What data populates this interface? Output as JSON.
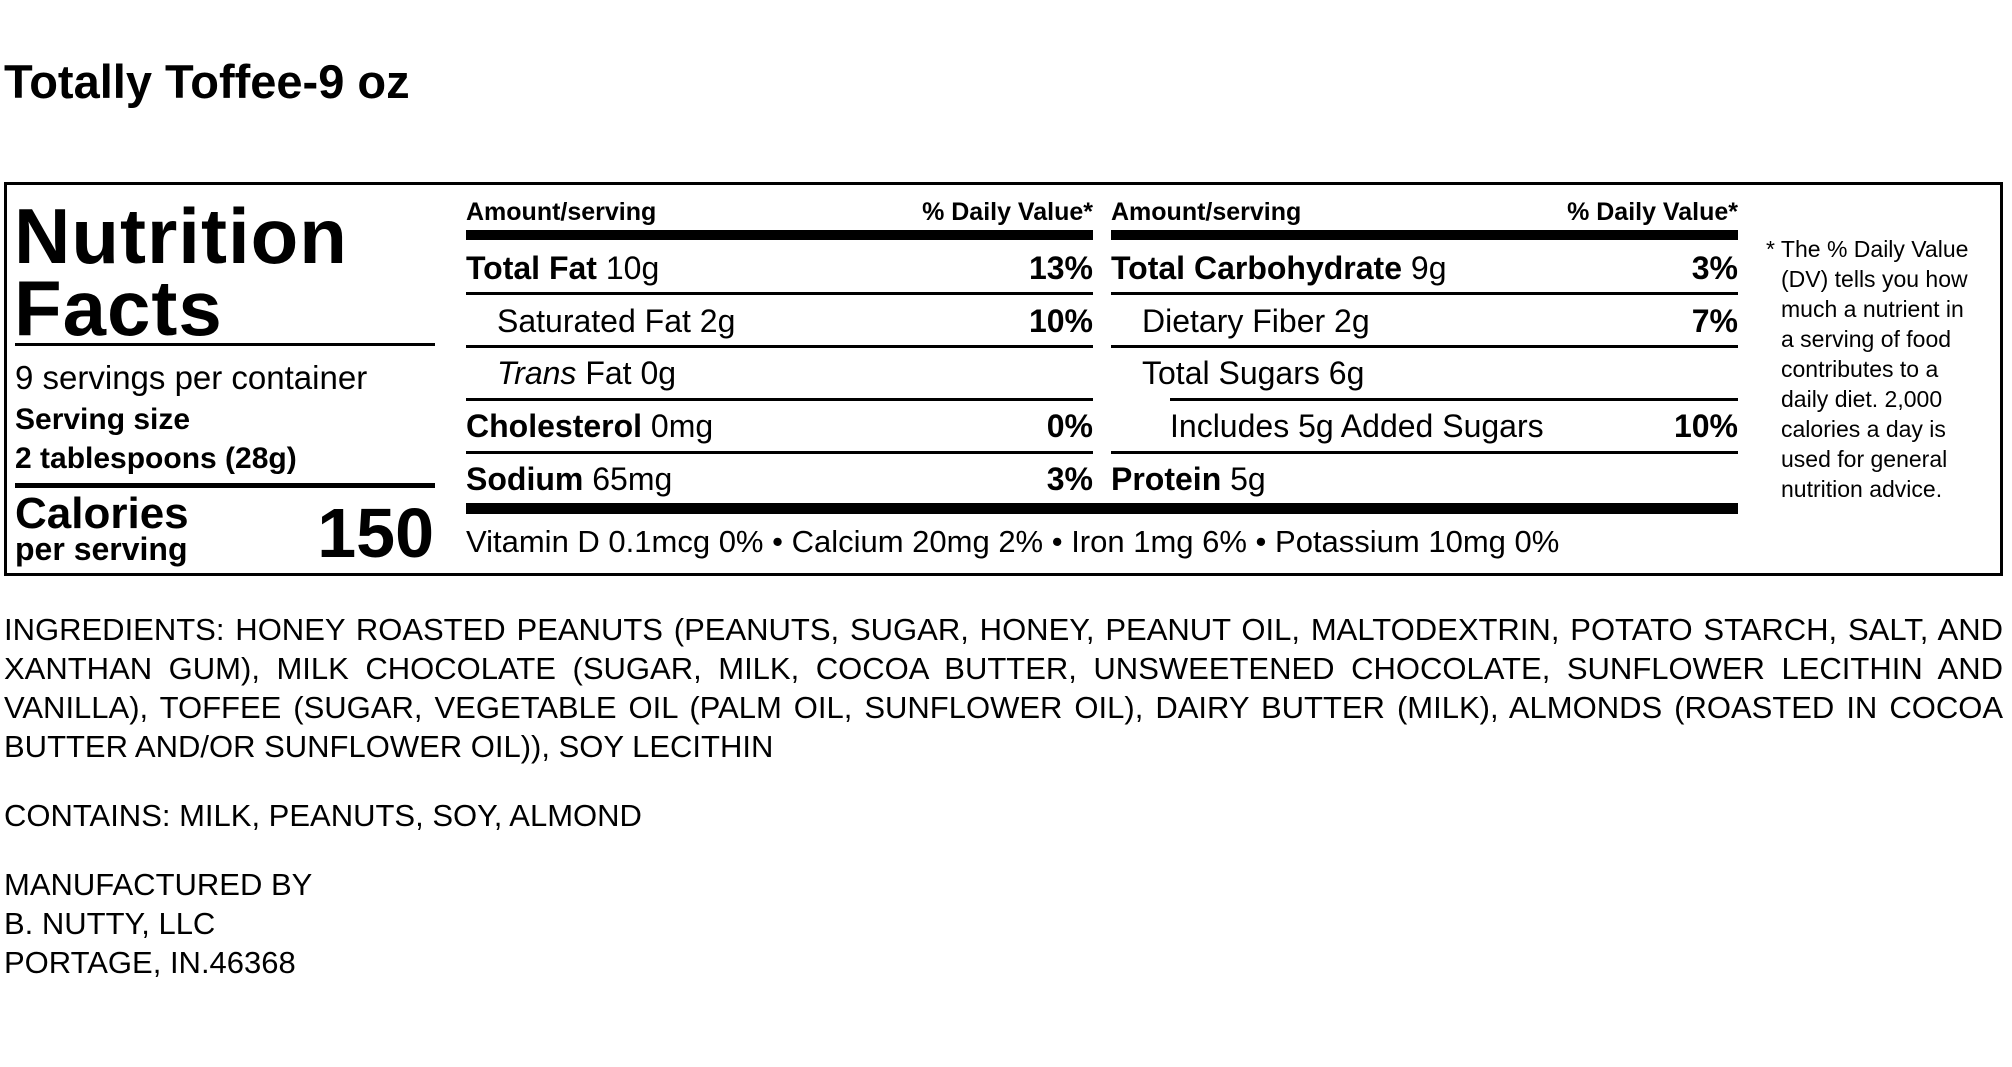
{
  "product_title": "Totally Toffee-9 oz",
  "label": {
    "heading_line1": "Nutrition",
    "heading_line2": "Facts",
    "servings_per_container": "9 servings per container",
    "serving_size_label": "Serving size",
    "serving_size_value": "2 tablespoons (28g)",
    "calories_label": "Calories",
    "calories_sublabel": "per serving",
    "calories_value": "150",
    "columns": [
      {
        "amount_header": "Amount/serving",
        "dv_header": "% Daily Value*",
        "rows": [
          {
            "name": "Total Fat",
            "amount": "10g",
            "dv": "13%",
            "bold": true,
            "indent": 0
          },
          {
            "name": "Saturated Fat",
            "amount": "2g",
            "dv": "10%",
            "bold": false,
            "indent": 1
          },
          {
            "name": "Trans",
            "name_suffix": "Fat",
            "amount": "0g",
            "dv": "",
            "bold": false,
            "indent": 1,
            "italic_prefix": true
          },
          {
            "name": "Cholesterol",
            "amount": "0mg",
            "dv": "0%",
            "bold": true,
            "indent": 0
          },
          {
            "name": "Sodium",
            "amount": "65mg",
            "dv": "3%",
            "bold": true,
            "indent": 0
          }
        ]
      },
      {
        "amount_header": "Amount/serving",
        "dv_header": "% Daily Value*",
        "rows": [
          {
            "name": "Total Carbohydrate",
            "amount": "9g",
            "dv": "3%",
            "bold": true,
            "indent": 0
          },
          {
            "name": "Dietary Fiber",
            "amount": "2g",
            "dv": "7%",
            "bold": false,
            "indent": 1
          },
          {
            "name": "Total Sugars",
            "amount": "6g",
            "dv": "",
            "bold": false,
            "indent": 1
          },
          {
            "name": "Includes 5g Added Sugars",
            "amount": "",
            "dv": "10%",
            "bold": false,
            "indent": 2
          },
          {
            "name": "Protein",
            "amount": "5g",
            "dv": "",
            "bold": true,
            "indent": 0
          }
        ]
      }
    ],
    "vitamins_line": "Vitamin D 0.1mcg 0% • Calcium 20mg 2% • Iron 1mg 6% • Potassium 10mg 0%",
    "footnote_lines": [
      "* The % Daily Value",
      "(DV) tells you how",
      "much a nutrient in",
      "a serving of food",
      "contributes to a",
      "daily diet. 2,000",
      "calories a day is",
      "used for general",
      "nutrition advice."
    ]
  },
  "ingredients": "INGREDIENTS: HONEY ROASTED PEANUTS (PEANUTS, SUGAR, HONEY, PEANUT OIL, MALTODEXTRIN, POTATO STARCH, SALT, AND XANTHAN GUM), MILK CHOCOLATE (SUGAR, MILK, COCOA BUTTER, UNSWEETENED CHOCOLATE, SUNFLOWER LECITHIN AND VANILLA), TOFFEE (SUGAR, VEGETABLE OIL (PALM OIL, SUNFLOWER OIL), DAIRY BUTTER (MILK), ALMONDS (ROASTED IN COCOA BUTTER AND/OR SUNFLOWER OIL)), SOY LECITHIN",
  "contains": "CONTAINS: MILK, PEANUTS, SOY, ALMOND",
  "manufacturer": {
    "line1": "MANUFACTURED BY",
    "line2": "B. NUTTY, LLC",
    "line3": "PORTAGE, IN.46368"
  }
}
